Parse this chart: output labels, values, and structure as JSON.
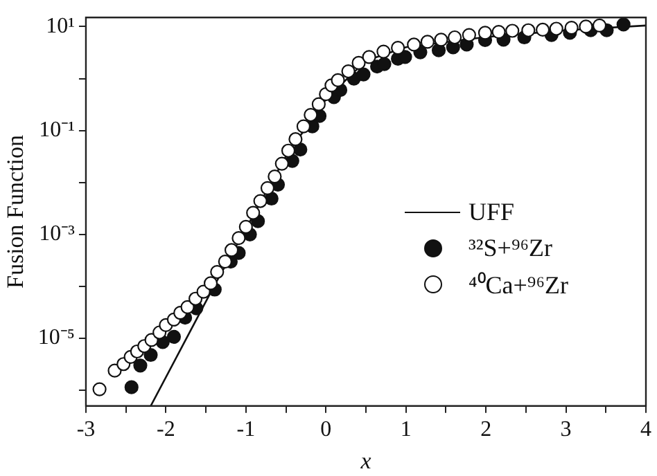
{
  "chart_data": {
    "type": "scatter",
    "xlabel": "x",
    "ylabel": "Fusion Function",
    "log": "y",
    "grid": false,
    "legend": "center right",
    "xlim": [
      -3,
      4
    ],
    "xticks": [
      -3,
      {
        "value": -2.5,
        "label": null
      },
      -2,
      {
        "value": -1.5,
        "label": null
      },
      -1,
      {
        "value": -0.5,
        "label": null
      },
      0,
      {
        "value": 0.5,
        "label": null
      },
      1,
      {
        "value": 1.5,
        "label": null
      },
      2,
      {
        "value": 2.5,
        "label": null
      },
      3,
      {
        "value": 3.5,
        "label": null
      },
      4
    ],
    "ylim": [
      5e-07,
      15
    ],
    "yticks": [
      {
        "value": 1e-06,
        "label": null
      },
      {
        "value": 1e-05,
        "label": "10⁻⁵"
      },
      {
        "value": 0.0001,
        "label": null
      },
      {
        "value": 0.001,
        "label": "10⁻³"
      },
      {
        "value": 0.01,
        "label": null
      },
      {
        "value": 0.1,
        "label": "10⁻¹"
      },
      {
        "value": 1,
        "label": null
      },
      {
        "value": 10,
        "label": "10¹"
      }
    ],
    "series": [
      {
        "name": "UFF",
        "type": "line",
        "color": "#111111",
        "marker": "none",
        "line_style": "solid",
        "x": [
          -2.19,
          -1.4,
          -1.0,
          -0.5,
          0,
          0.5,
          1,
          2,
          3,
          4
        ],
        "values": [
          5e-07,
          0.0001,
          0.0013,
          0.032,
          0.4,
          2.2,
          4,
          6.3,
          8.5,
          10.5
        ]
      },
      {
        "name": "³²S+⁹⁶Zr",
        "color": "#111111",
        "marker": "circle",
        "x": [
          -2.43,
          -2.32,
          -2.19,
          -2.04,
          -1.9,
          -1.76,
          -1.62,
          -1.39,
          -1.19,
          -1.09,
          -0.95,
          -0.85,
          -0.68,
          -0.6,
          -0.42,
          -0.32,
          -0.17,
          -0.08,
          0.1,
          0.18,
          0.35,
          0.47,
          0.64,
          0.73,
          0.9,
          0.99,
          1.18,
          1.41,
          1.59,
          1.76,
          1.99,
          2.22,
          2.48,
          2.82,
          3.05,
          3.31,
          3.51,
          3.72
        ],
        "values": [
          1.15e-06,
          3e-06,
          4.8e-06,
          8.5e-06,
          1.07e-05,
          2.5e-05,
          3.8e-05,
          8.7e-05,
          0.0003,
          0.00044,
          0.001,
          0.0018,
          0.0049,
          0.0091,
          0.026,
          0.043,
          0.12,
          0.19,
          0.44,
          0.6,
          1.0,
          1.2,
          1.7,
          1.9,
          2.4,
          2.6,
          3.2,
          3.5,
          4.0,
          4.5,
          5.5,
          5.6,
          6.2,
          6.9,
          7.6,
          8.5,
          8.5,
          11
        ]
      },
      {
        "name": "⁴⁰Ca+⁹⁶Zr",
        "color": "#ffffff",
        "marker": "circle",
        "x": [
          -2.83,
          -2.64,
          -2.53,
          -2.44,
          -2.36,
          -2.27,
          -2.18,
          -2.08,
          -2.0,
          -1.9,
          -1.82,
          -1.73,
          -1.63,
          -1.53,
          -1.44,
          -1.36,
          -1.26,
          -1.18,
          -1.09,
          -1.0,
          -0.91,
          -0.82,
          -0.73,
          -0.64,
          -0.55,
          -0.47,
          -0.38,
          -0.28,
          -0.19,
          -0.09,
          0.0,
          0.07,
          0.15,
          0.28,
          0.41,
          0.54,
          0.72,
          0.9,
          1.1,
          1.27,
          1.44,
          1.61,
          1.79,
          1.99,
          2.16,
          2.33,
          2.53,
          2.71,
          2.88,
          3.07,
          3.25,
          3.42
        ],
        "values": [
          1.05e-06,
          2.4e-06,
          3.2e-06,
          4.4e-06,
          5.6e-06,
          7.1e-06,
          9.3e-06,
          1.3e-05,
          1.8e-05,
          2.3e-05,
          3.1e-05,
          4e-05,
          5.8e-05,
          7.9e-05,
          0.000115,
          0.00019,
          0.0003,
          0.0005,
          0.00085,
          0.0014,
          0.0026,
          0.0044,
          0.0078,
          0.013,
          0.023,
          0.041,
          0.068,
          0.12,
          0.2,
          0.32,
          0.5,
          0.74,
          0.93,
          1.38,
          2.0,
          2.6,
          3.3,
          3.9,
          4.5,
          5.1,
          5.6,
          6.2,
          6.9,
          7.6,
          7.9,
          8.3,
          8.5,
          8.7,
          9.1,
          9.5,
          10,
          10.5
        ]
      }
    ]
  }
}
